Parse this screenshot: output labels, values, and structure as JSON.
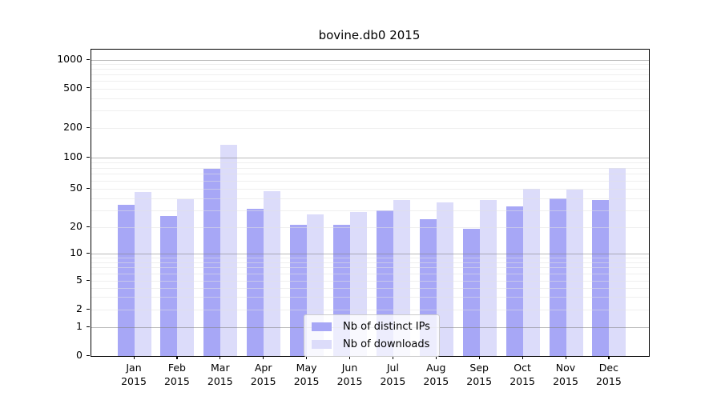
{
  "title": "bovine.db0 2015",
  "colors": {
    "distinct_ips": "#a7a7f6",
    "downloads": "#dcdcfa",
    "axis": "#000000",
    "grid_major": "#828282",
    "grid_minor": "#e1e1e1",
    "legend_border": "#cccccc"
  },
  "chart_data": {
    "type": "bar",
    "title": "bovine.db0 2015",
    "categories": [
      "Jan",
      "Feb",
      "Mar",
      "Apr",
      "May",
      "Jun",
      "Jul",
      "Aug",
      "Sep",
      "Oct",
      "Nov",
      "Dec"
    ],
    "year_label": "2015",
    "series": [
      {
        "name": "Nb of distinct IPs",
        "color": "#a7a7f6",
        "values": [
          34,
          26,
          78,
          31,
          21,
          21,
          30,
          24,
          19,
          33,
          40,
          38
        ]
      },
      {
        "name": "Nb of downloads",
        "color": "#dcdcfa",
        "values": [
          46,
          39,
          135,
          47,
          27,
          29,
          38,
          36,
          38,
          50,
          49,
          80
        ]
      }
    ],
    "yscale": "symlog",
    "ylim": [
      0,
      1400
    ],
    "ytick_labels": [
      "0",
      "1",
      "2",
      "5",
      "10",
      "20",
      "50",
      "100",
      "200",
      "500",
      "1000"
    ],
    "ytick_values": [
      0,
      1,
      2,
      5,
      10,
      20,
      50,
      100,
      200,
      500,
      1000
    ],
    "grid": true,
    "legend_position": "lower center",
    "xlabel": "",
    "ylabel": ""
  }
}
